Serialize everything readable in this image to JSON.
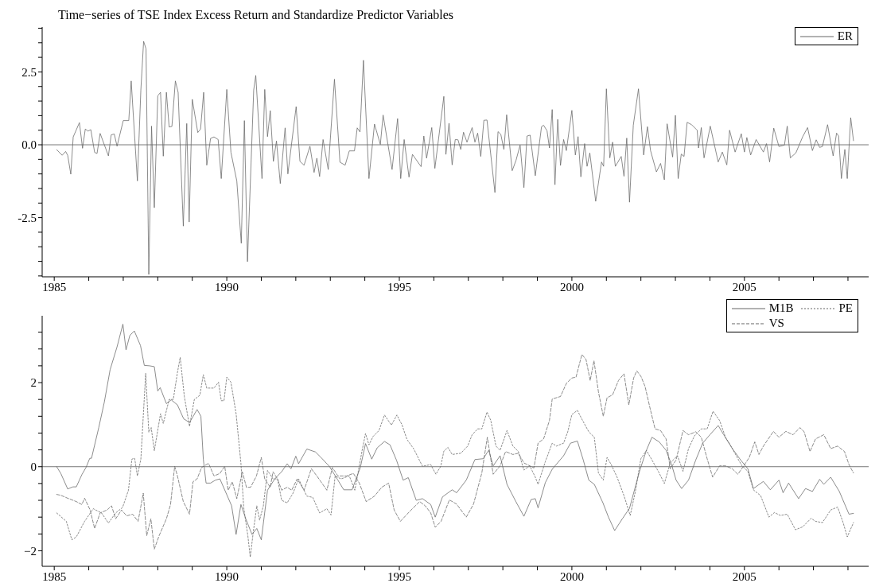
{
  "chart_data": [
    {
      "type": "line",
      "title": "Time−series of TSE Index Excess Return and Standardize Predictor Variables",
      "legend": "top right",
      "xlim": [
        1984.65,
        2008.6
      ],
      "xticks": [
        1985,
        {
          "value": 1986,
          "label": null
        },
        {
          "value": 1987,
          "label": null
        },
        {
          "value": 1988,
          "label": null
        },
        {
          "value": 1989,
          "label": null
        },
        1990,
        {
          "value": 1991,
          "label": null
        },
        {
          "value": 1992,
          "label": null
        },
        {
          "value": 1993,
          "label": null
        },
        {
          "value": 1994,
          "label": null
        },
        1995,
        {
          "value": 1996,
          "label": null
        },
        {
          "value": 1997,
          "label": null
        },
        {
          "value": 1998,
          "label": null
        },
        {
          "value": 1999,
          "label": null
        },
        2000,
        {
          "value": 2001,
          "label": null
        },
        {
          "value": 2002,
          "label": null
        },
        {
          "value": 2003,
          "label": null
        },
        {
          "value": 2004,
          "label": null
        },
        2005,
        {
          "value": 2006,
          "label": null
        },
        {
          "value": 2007,
          "label": null
        },
        {
          "value": 2008,
          "label": null
        }
      ],
      "ylim": [
        -4.53,
        4.04
      ],
      "yticks": [
        {
          "value": -4.5,
          "label": null
        },
        {
          "value": -4,
          "label": null
        },
        {
          "value": -3.5,
          "label": null
        },
        {
          "value": -3,
          "label": null
        },
        -2.5,
        {
          "value": -2,
          "label": null
        },
        {
          "value": -1.5,
          "label": null
        },
        {
          "value": -1,
          "label": null
        },
        {
          "value": -0.5,
          "label": null
        },
        {
          "value": 0,
          "label": "0.0"
        },
        {
          "value": 0.5,
          "label": null
        },
        {
          "value": 1,
          "label": null
        },
        {
          "value": 1.5,
          "label": null
        },
        {
          "value": 2,
          "label": null
        },
        2.5,
        {
          "value": 3,
          "label": null
        },
        {
          "value": 3.5,
          "label": null
        },
        {
          "value": 4,
          "label": null
        }
      ],
      "ref_lines": [
        {
          "axis": "y",
          "value": 0,
          "color": "#777777"
        }
      ],
      "series": [
        {
          "name": "ER",
          "color": "#666666",
          "line_style": "solid",
          "x": [
            1985.07,
            1985.23,
            1985.33,
            1985.39,
            1985.48,
            1985.55,
            1985.73,
            1985.82,
            1985.9,
            1985.98,
            1986.06,
            1986.17,
            1986.24,
            1986.33,
            1986.57,
            1986.65,
            1986.74,
            1986.82,
            1987.0,
            1987.16,
            1987.23,
            1987.41,
            1987.51,
            1987.59,
            1987.66,
            1987.74,
            1987.82,
            1987.9,
            1988.0,
            1988.08,
            1988.16,
            1988.25,
            1988.33,
            1988.41,
            1988.51,
            1988.59,
            1988.74,
            1988.84,
            1988.91,
            1989.0,
            1989.16,
            1989.24,
            1989.33,
            1989.42,
            1989.53,
            1989.63,
            1989.75,
            1989.84,
            1990.0,
            1990.12,
            1990.29,
            1990.42,
            1990.51,
            1990.6,
            1990.78,
            1990.84,
            1991.02,
            1991.1,
            1991.18,
            1991.26,
            1991.35,
            1991.44,
            1991.55,
            1991.69,
            1991.77,
            1992.01,
            1992.12,
            1992.24,
            1992.41,
            1992.53,
            1992.61,
            1992.69,
            1992.79,
            1992.94,
            1993.12,
            1993.28,
            1993.43,
            1993.55,
            1993.7,
            1993.78,
            1993.86,
            1993.96,
            1994.12,
            1994.28,
            1994.45,
            1994.53,
            1994.79,
            1994.95,
            1995.04,
            1995.14,
            1995.28,
            1995.38,
            1995.63,
            1995.71,
            1995.79,
            1995.94,
            1996.03,
            1996.29,
            1996.35,
            1996.44,
            1996.53,
            1996.62,
            1996.7,
            1996.78,
            1996.86,
            1996.96,
            1997.11,
            1997.19,
            1997.27,
            1997.36,
            1997.45,
            1997.54,
            1997.77,
            1997.86,
            1997.94,
            1998.03,
            1998.11,
            1998.27,
            1998.38,
            1998.5,
            1998.61,
            1998.7,
            1998.79,
            1998.94,
            1999.12,
            1999.18,
            1999.28,
            1999.35,
            1999.43,
            1999.51,
            1999.59,
            1999.67,
            1999.76,
            1999.84,
            2000.0,
            2000.1,
            2000.18,
            2000.26,
            2000.37,
            2000.44,
            2000.52,
            2000.69,
            2000.86,
            2000.92,
            2001.0,
            2001.1,
            2001.18,
            2001.26,
            2001.43,
            2001.51,
            2001.59,
            2001.67,
            2001.78,
            2001.93,
            2002.08,
            2002.19,
            2002.28,
            2002.45,
            2002.57,
            2002.68,
            2002.76,
            2002.92,
            2003.0,
            2003.08,
            2003.17,
            2003.25,
            2003.34,
            2003.47,
            2003.63,
            2003.67,
            2003.75,
            2003.83,
            2004.01,
            2004.24,
            2004.36,
            2004.49,
            2004.57,
            2004.73,
            2004.91,
            2005.0,
            2005.07,
            2005.18,
            2005.34,
            2005.55,
            2005.64,
            2005.73,
            2005.85,
            2006.0,
            2006.16,
            2006.24,
            2006.33,
            2006.49,
            2006.69,
            2006.83,
            2006.97,
            2007.08,
            2007.18,
            2007.26,
            2007.41,
            2007.57,
            2007.67,
            2007.73,
            2007.81,
            2007.91,
            2007.98,
            2008.08,
            2008.16
          ],
          "values": [
            -0.17,
            -0.36,
            -0.23,
            -0.36,
            -1.01,
            0.27,
            0.76,
            -0.12,
            0.54,
            0.47,
            0.52,
            -0.26,
            -0.3,
            0.39,
            -0.38,
            0.34,
            0.37,
            -0.05,
            0.83,
            0.83,
            2.19,
            -1.24,
            1.88,
            3.55,
            3.29,
            -4.45,
            0.64,
            -2.16,
            1.68,
            1.8,
            -0.39,
            1.8,
            0.61,
            0.63,
            2.19,
            1.8,
            -2.79,
            0.73,
            -2.65,
            1.56,
            0.42,
            0.54,
            1.8,
            -0.7,
            0.22,
            0.27,
            0.18,
            -1.16,
            1.9,
            -0.26,
            -1.24,
            -3.38,
            0.83,
            -4.01,
            1.88,
            2.38,
            -1.16,
            1.9,
            0.28,
            1.17,
            -0.57,
            0.13,
            -1.33,
            0.58,
            -1.0,
            1.31,
            -0.57,
            -0.7,
            -0.05,
            -0.95,
            -0.46,
            -1.09,
            0.18,
            -0.85,
            2.25,
            -0.6,
            -0.7,
            -0.21,
            -0.21,
            0.58,
            0.44,
            2.9,
            -1.16,
            0.71,
            0.01,
            1.02,
            -0.85,
            0.9,
            -1.16,
            0.18,
            -1.11,
            -0.33,
            -0.75,
            0.3,
            -0.46,
            0.59,
            -0.81,
            1.66,
            -0.33,
            0.74,
            -0.69,
            0.18,
            0.17,
            -0.16,
            0.43,
            0.09,
            0.59,
            0.09,
            0.4,
            -0.4,
            0.84,
            0.85,
            -1.64,
            0.45,
            0.36,
            -0.16,
            1.03,
            -0.89,
            -0.54,
            -0.01,
            -1.47,
            0.3,
            0.33,
            -1.06,
            0.62,
            0.67,
            0.48,
            -0.11,
            1.21,
            -1.37,
            0.87,
            -0.71,
            0.18,
            -0.2,
            1.18,
            -0.35,
            0.28,
            -1.1,
            0.04,
            -0.74,
            -0.28,
            -1.94,
            -0.59,
            -0.74,
            1.92,
            -0.45,
            0.09,
            -0.74,
            -0.4,
            -1.08,
            0.23,
            -1.97,
            0.67,
            1.92,
            -0.35,
            0.62,
            -0.2,
            -0.93,
            -0.64,
            -1.2,
            0.72,
            -0.42,
            1.01,
            -1.16,
            -0.32,
            -0.4,
            0.77,
            0.69,
            0.5,
            -0.11,
            0.59,
            -0.45,
            0.64,
            -0.59,
            -0.25,
            -0.69,
            0.5,
            -0.25,
            0.38,
            -0.25,
            0.25,
            -0.35,
            0.18,
            -0.25,
            0.04,
            -0.59,
            0.57,
            -0.06,
            -0.01,
            0.64,
            -0.45,
            -0.28,
            0.28,
            0.59,
            -0.2,
            0.17,
            -0.09,
            -0.06,
            0.69,
            -0.38,
            0.4,
            0.3,
            -1.16,
            -0.16,
            -1.16,
            0.93,
            0.14
          ]
        }
      ]
    },
    {
      "type": "line",
      "legend": "top right",
      "xlim": [
        1984.65,
        2008.6
      ],
      "xticks": [
        1985,
        {
          "value": 1986,
          "label": null
        },
        {
          "value": 1987,
          "label": null
        },
        {
          "value": 1988,
          "label": null
        },
        {
          "value": 1989,
          "label": null
        },
        1990,
        {
          "value": 1991,
          "label": null
        },
        {
          "value": 1992,
          "label": null
        },
        {
          "value": 1993,
          "label": null
        },
        {
          "value": 1994,
          "label": null
        },
        1995,
        {
          "value": 1996,
          "label": null
        },
        {
          "value": 1997,
          "label": null
        },
        {
          "value": 1998,
          "label": null
        },
        {
          "value": 1999,
          "label": null
        },
        2000,
        {
          "value": 2001,
          "label": null
        },
        {
          "value": 2002,
          "label": null
        },
        {
          "value": 2003,
          "label": null
        },
        {
          "value": 2004,
          "label": null
        },
        2005,
        {
          "value": 2006,
          "label": null
        },
        {
          "value": 2007,
          "label": null
        },
        {
          "value": 2008,
          "label": null
        }
      ],
      "ylim": [
        -2.37,
        3.59
      ],
      "yticks": [
        {
          "value": -2,
          "label": "−2"
        },
        {
          "value": -1.6,
          "label": null
        },
        {
          "value": -1.2,
          "label": null
        },
        {
          "value": -0.8,
          "label": null
        },
        {
          "value": -0.4,
          "label": null
        },
        0,
        {
          "value": 0.4,
          "label": null
        },
        {
          "value": 0.8,
          "label": null
        },
        {
          "value": 1.2,
          "label": null
        },
        {
          "value": 1.6,
          "label": null
        },
        2,
        {
          "value": 2.4,
          "label": null
        },
        {
          "value": 2.8,
          "label": null
        },
        {
          "value": 3.2,
          "label": null
        }
      ],
      "ref_lines": [
        {
          "axis": "y",
          "value": 0,
          "color": "#777777"
        }
      ],
      "series": [
        {
          "name": "M1B",
          "color": "#666666",
          "line_style": "solid",
          "x": [
            1985.07,
            1985.19,
            1985.39,
            1985.54,
            1985.64,
            1985.8,
            1985.92,
            1986.03,
            1986.08,
            1986.29,
            1986.45,
            1986.62,
            1986.82,
            1986.99,
            1987.08,
            1987.19,
            1987.32,
            1987.5,
            1987.61,
            1987.76,
            1987.9,
            1988.0,
            1988.07,
            1988.25,
            1988.39,
            1988.57,
            1988.75,
            1988.92,
            1989.14,
            1989.25,
            1989.32,
            1989.4,
            1989.53,
            1989.67,
            1989.8,
            1989.96,
            1990.14,
            1990.27,
            1990.41,
            1990.55,
            1990.73,
            1990.87,
            1991.0,
            1991.18,
            1991.39,
            1991.59,
            1991.75,
            1991.86,
            1992.0,
            1992.08,
            1992.32,
            1992.57,
            1992.73,
            1992.98,
            1993.22,
            1993.39,
            1993.63,
            1993.87,
            1994.02,
            1994.2,
            1994.36,
            1994.57,
            1994.73,
            1994.92,
            1995.11,
            1995.26,
            1995.49,
            1995.67,
            1995.91,
            1996.04,
            1996.25,
            1996.53,
            1996.66,
            1996.94,
            1997.19,
            1997.43,
            1997.59,
            1997.72,
            1997.92,
            1998.12,
            1998.37,
            1998.61,
            1998.82,
            1998.94,
            1999.02,
            1999.23,
            1999.43,
            1999.76,
            1999.96,
            2000.16,
            2000.33,
            2000.49,
            2000.65,
            2000.9,
            2001.06,
            2001.24,
            2001.47,
            2001.67,
            2001.96,
            2002.16,
            2002.32,
            2002.53,
            2002.73,
            2002.9,
            2003.02,
            2003.18,
            2003.38,
            2003.59,
            2003.79,
            2004.0,
            2004.24,
            2004.4,
            2004.65,
            2004.89,
            2005.1,
            2005.26,
            2005.55,
            2005.75,
            2006.0,
            2006.12,
            2006.28,
            2006.57,
            2006.77,
            2006.97,
            2007.18,
            2007.3,
            2007.5,
            2007.75,
            2008.03,
            2008.16
          ],
          "values": [
            0,
            -0.16,
            -0.53,
            -0.48,
            -0.48,
            -0.19,
            -0.02,
            0.2,
            0.2,
            0.93,
            1.53,
            2.31,
            2.85,
            3.39,
            2.78,
            3.12,
            3.23,
            2.88,
            2.41,
            2.4,
            2.38,
            1.8,
            1.88,
            1.5,
            1.59,
            1.47,
            1.14,
            1.05,
            1.36,
            1.2,
            0.18,
            -0.39,
            -0.39,
            -0.32,
            -0.29,
            -0.59,
            -0.93,
            -1.61,
            -0.9,
            -1.24,
            -1.61,
            -1.47,
            -1.74,
            -0.56,
            -0.29,
            -0.12,
            0.07,
            -0.05,
            0.25,
            0.07,
            0.42,
            0.35,
            0.22,
            0,
            -0.32,
            -0.55,
            -0.55,
            -0.02,
            0.55,
            0.18,
            0.45,
            0.6,
            0.52,
            0.15,
            -0.32,
            -0.26,
            -0.8,
            -0.76,
            -0.9,
            -1.2,
            -0.72,
            -0.55,
            -0.62,
            -0.32,
            0.17,
            0.19,
            0.39,
            0.02,
            0.26,
            -0.42,
            -0.82,
            -1.18,
            -0.78,
            -0.76,
            -0.98,
            -0.38,
            -0.06,
            0.26,
            0.56,
            0.61,
            0.16,
            -0.32,
            -0.42,
            -0.86,
            -1.2,
            -1.52,
            -1.23,
            -0.99,
            -0.11,
            0.39,
            0.7,
            0.59,
            0.39,
            0.02,
            -0.32,
            -0.52,
            -0.32,
            0.16,
            0.56,
            0.76,
            0.98,
            0.76,
            0.43,
            0.16,
            -0.05,
            -0.52,
            -0.35,
            -0.55,
            -0.32,
            -0.62,
            -0.39,
            -0.76,
            -0.52,
            -0.59,
            -0.3,
            -0.42,
            -0.25,
            -0.59,
            -1.13,
            -1.11
          ]
        },
        {
          "name": "PE",
          "color": "#666666",
          "line_style": "dotted",
          "x": [
            1985.07,
            1985.35,
            1985.51,
            1985.64,
            1985.88,
            1986.13,
            1986.37,
            1986.57,
            1986.78,
            1986.98,
            1987.15,
            1987.25,
            1987.33,
            1987.41,
            1987.51,
            1987.65,
            1987.74,
            1987.81,
            1987.9,
            1988.08,
            1988.16,
            1988.33,
            1988.45,
            1988.57,
            1988.65,
            1988.77,
            1988.92,
            1989.06,
            1989.22,
            1989.32,
            1989.42,
            1989.63,
            1989.76,
            1989.84,
            1989.92,
            1990.0,
            1990.12,
            1990.27,
            1990.41,
            1990.49,
            1990.61,
            1990.68,
            1990.77,
            1990.87,
            1990.95,
            1991.06,
            1991.18,
            1991.34,
            1991.47,
            1991.59,
            1991.75,
            1991.92,
            1992.08,
            1992.32,
            1992.49,
            1992.69,
            1992.9,
            1993.02,
            1993.14,
            1993.31,
            1993.55,
            1993.71,
            1993.92,
            1994.02,
            1994.12,
            1994.24,
            1994.41,
            1994.57,
            1994.77,
            1994.93,
            1995.08,
            1995.22,
            1995.42,
            1995.67,
            1995.91,
            1996.06,
            1996.2,
            1996.29,
            1996.41,
            1996.53,
            1996.78,
            1996.98,
            1997.11,
            1997.27,
            1997.39,
            1997.54,
            1997.65,
            1997.8,
            1997.92,
            1998.12,
            1998.29,
            1998.45,
            1998.61,
            1998.78,
            1998.94,
            1999.02,
            1999.23,
            1999.43,
            1999.55,
            1999.76,
            1999.88,
            2000.0,
            2000.16,
            2000.29,
            2000.49,
            2000.65,
            2000.77,
            2000.91,
            2001.02,
            2001.14,
            2001.31,
            2001.51,
            2001.69,
            2001.84,
            2002.0,
            2002.16,
            2002.32,
            2002.53,
            2002.68,
            2002.85,
            2003.06,
            2003.22,
            2003.38,
            2003.55,
            2003.75,
            2003.92,
            2004.09,
            2004.28,
            2004.45,
            2004.61,
            2004.81,
            2004.93,
            2005.1,
            2005.26,
            2005.47,
            2005.71,
            2005.87,
            2006.04,
            2006.24,
            2006.48,
            2006.69,
            2006.93,
            2007.06,
            2007.26,
            2007.5,
            2007.7,
            2007.86,
            2007.98,
            2008.16
          ],
          "values": [
            -1.1,
            -1.3,
            -1.74,
            -1.67,
            -1.3,
            -1.0,
            -1.1,
            -1.34,
            -1.1,
            -0.97,
            -0.56,
            0.18,
            0.2,
            -0.22,
            0.18,
            2.22,
            0.82,
            0.93,
            0.38,
            1.26,
            1.03,
            1.6,
            1.6,
            2.24,
            2.6,
            1.67,
            0.96,
            1.6,
            1.7,
            2.19,
            1.87,
            1.87,
            2.01,
            1.57,
            1.57,
            2.13,
            2.01,
            1.26,
            0.08,
            -0.97,
            -1.64,
            -2.15,
            -1.54,
            -0.93,
            -1.27,
            -0.93,
            -0.09,
            -0.29,
            -0.29,
            -0.8,
            -0.86,
            -0.63,
            -0.29,
            -0.7,
            -0.73,
            -1.1,
            -1.0,
            -1.15,
            -0.22,
            -0.29,
            -0.22,
            -0.56,
            0.38,
            0.79,
            0.52,
            0.72,
            0.86,
            1.23,
            0.99,
            1.23,
            0.99,
            0.65,
            0.42,
            0.01,
            0.05,
            -0.18,
            0.01,
            0.37,
            0.46,
            0.29,
            0.32,
            0.49,
            0.76,
            0.9,
            0.9,
            1.3,
            1.1,
            0.49,
            0.39,
            0.86,
            0.49,
            0.36,
            -0.08,
            0.02,
            -0.25,
            -0.42,
            0.12,
            0.56,
            0.49,
            0.56,
            0.83,
            1.24,
            1.34,
            1.13,
            0.83,
            0.7,
            -0.15,
            -0.32,
            0.22,
            0.05,
            -0.25,
            -0.69,
            -1.16,
            -0.59,
            0.19,
            0.39,
            0.16,
            -0.15,
            -0.4,
            0.09,
            0.26,
            -0.11,
            0.43,
            0.73,
            0.9,
            0.9,
            1.32,
            1.1,
            0.7,
            0.49,
            0.19,
            0.02,
            -0.11,
            -0.55,
            -0.69,
            -1.2,
            -1.09,
            -1.16,
            -1.13,
            -1.5,
            -1.43,
            -1.23,
            -1.3,
            -1.33,
            -1.03,
            -0.96,
            -1.33,
            -1.67,
            -1.33
          ]
        },
        {
          "name": "VS",
          "color": "#666666",
          "line_style": "dashed",
          "x": [
            1985.07,
            1985.19,
            1985.39,
            1985.64,
            1985.8,
            1985.88,
            1986.04,
            1986.17,
            1986.33,
            1986.53,
            1986.66,
            1986.78,
            1986.95,
            1987.1,
            1987.27,
            1987.43,
            1987.58,
            1987.68,
            1987.8,
            1987.9,
            1988.04,
            1988.25,
            1988.37,
            1988.49,
            1988.57,
            1988.74,
            1988.92,
            1989.02,
            1989.14,
            1989.27,
            1989.47,
            1989.63,
            1989.8,
            1989.94,
            1990.04,
            1990.16,
            1990.29,
            1990.45,
            1990.57,
            1990.69,
            1990.86,
            1991.0,
            1991.1,
            1991.26,
            1991.34,
            1991.47,
            1991.59,
            1991.75,
            1991.88,
            1992.04,
            1992.24,
            1992.45,
            1992.61,
            1992.73,
            1992.9,
            1993.06,
            1993.22,
            1993.47,
            1993.67,
            1993.84,
            1994.04,
            1994.28,
            1994.49,
            1994.69,
            1994.85,
            1995.03,
            1995.18,
            1995.34,
            1995.59,
            1995.75,
            1995.91,
            1996.04,
            1996.21,
            1996.45,
            1996.66,
            1996.94,
            1997.15,
            1997.39,
            1997.55,
            1997.72,
            1997.92,
            1998.08,
            1998.29,
            1998.45,
            1998.61,
            1998.78,
            1998.9,
            1999.02,
            1999.18,
            1999.35,
            1999.43,
            1999.67,
            1999.84,
            2000.0,
            2000.12,
            2000.29,
            2000.41,
            2000.53,
            2000.64,
            2000.77,
            2000.91,
            2001.02,
            2001.18,
            2001.35,
            2001.51,
            2001.65,
            2001.79,
            2001.88,
            2002.0,
            2002.12,
            2002.28,
            2002.41,
            2002.57,
            2002.73,
            2002.85,
            2003.02,
            2003.22,
            2003.38,
            2003.59,
            2003.75,
            2003.92,
            2004.08,
            2004.28,
            2004.45,
            2004.65,
            2004.81,
            2004.98,
            2005.14,
            2005.3,
            2005.42,
            2005.55,
            2005.84,
            2006.0,
            2006.2,
            2006.41,
            2006.61,
            2006.73,
            2006.9,
            2007.06,
            2007.3,
            2007.5,
            2007.7,
            2007.9,
            2008.03,
            2008.16
          ],
          "values": [
            -0.66,
            -0.68,
            -0.75,
            -0.83,
            -0.9,
            -0.75,
            -1.03,
            -1.47,
            -1.1,
            -1.03,
            -0.93,
            -1.24,
            -1.03,
            -1.17,
            -1.13,
            -1.3,
            -0.63,
            -1.64,
            -1.24,
            -1.96,
            -1.64,
            -1.24,
            -0.9,
            0.01,
            -0.22,
            -0.83,
            -1.13,
            -0.36,
            -0.29,
            -0.02,
            0.08,
            -0.22,
            -0.16,
            0.01,
            -0.56,
            -0.36,
            -0.76,
            -0.12,
            -0.49,
            -0.49,
            -0.22,
            0.22,
            -0.29,
            -0.49,
            -0.12,
            -0.29,
            -0.56,
            -0.49,
            -0.56,
            -0.29,
            -0.56,
            -0.05,
            -0.22,
            -0.36,
            -0.56,
            -0.02,
            -0.22,
            -0.22,
            -0.16,
            -0.39,
            -0.83,
            -0.7,
            -0.49,
            -0.39,
            -1.03,
            -1.3,
            -1.17,
            -1.03,
            -0.83,
            -0.93,
            -1.1,
            -1.44,
            -1.3,
            -0.79,
            -0.89,
            -1.2,
            -0.89,
            -0.15,
            0.7,
            -0.18,
            0.02,
            0.36,
            0.29,
            0.32,
            0.09,
            0.02,
            -0.03,
            0.56,
            0.66,
            1.1,
            1.61,
            1.67,
            1.98,
            2.11,
            2.13,
            2.67,
            2.55,
            2.05,
            2.52,
            1.78,
            1.2,
            1.64,
            1.71,
            2.05,
            2.21,
            1.47,
            2.11,
            2.28,
            2.15,
            1.91,
            1.34,
            0.9,
            0.86,
            0.66,
            -0.05,
            0.16,
            0.86,
            0.76,
            0.83,
            0.7,
            0.19,
            -0.25,
            0.02,
            0.02,
            -0.05,
            -0.18,
            0.02,
            0.22,
            0.59,
            0.29,
            0.49,
            0.84,
            0.7,
            0.84,
            0.76,
            0.93,
            0.83,
            0.36,
            0.66,
            0.76,
            0.43,
            0.49,
            0.36,
            0.05,
            -0.15
          ]
        }
      ]
    }
  ]
}
